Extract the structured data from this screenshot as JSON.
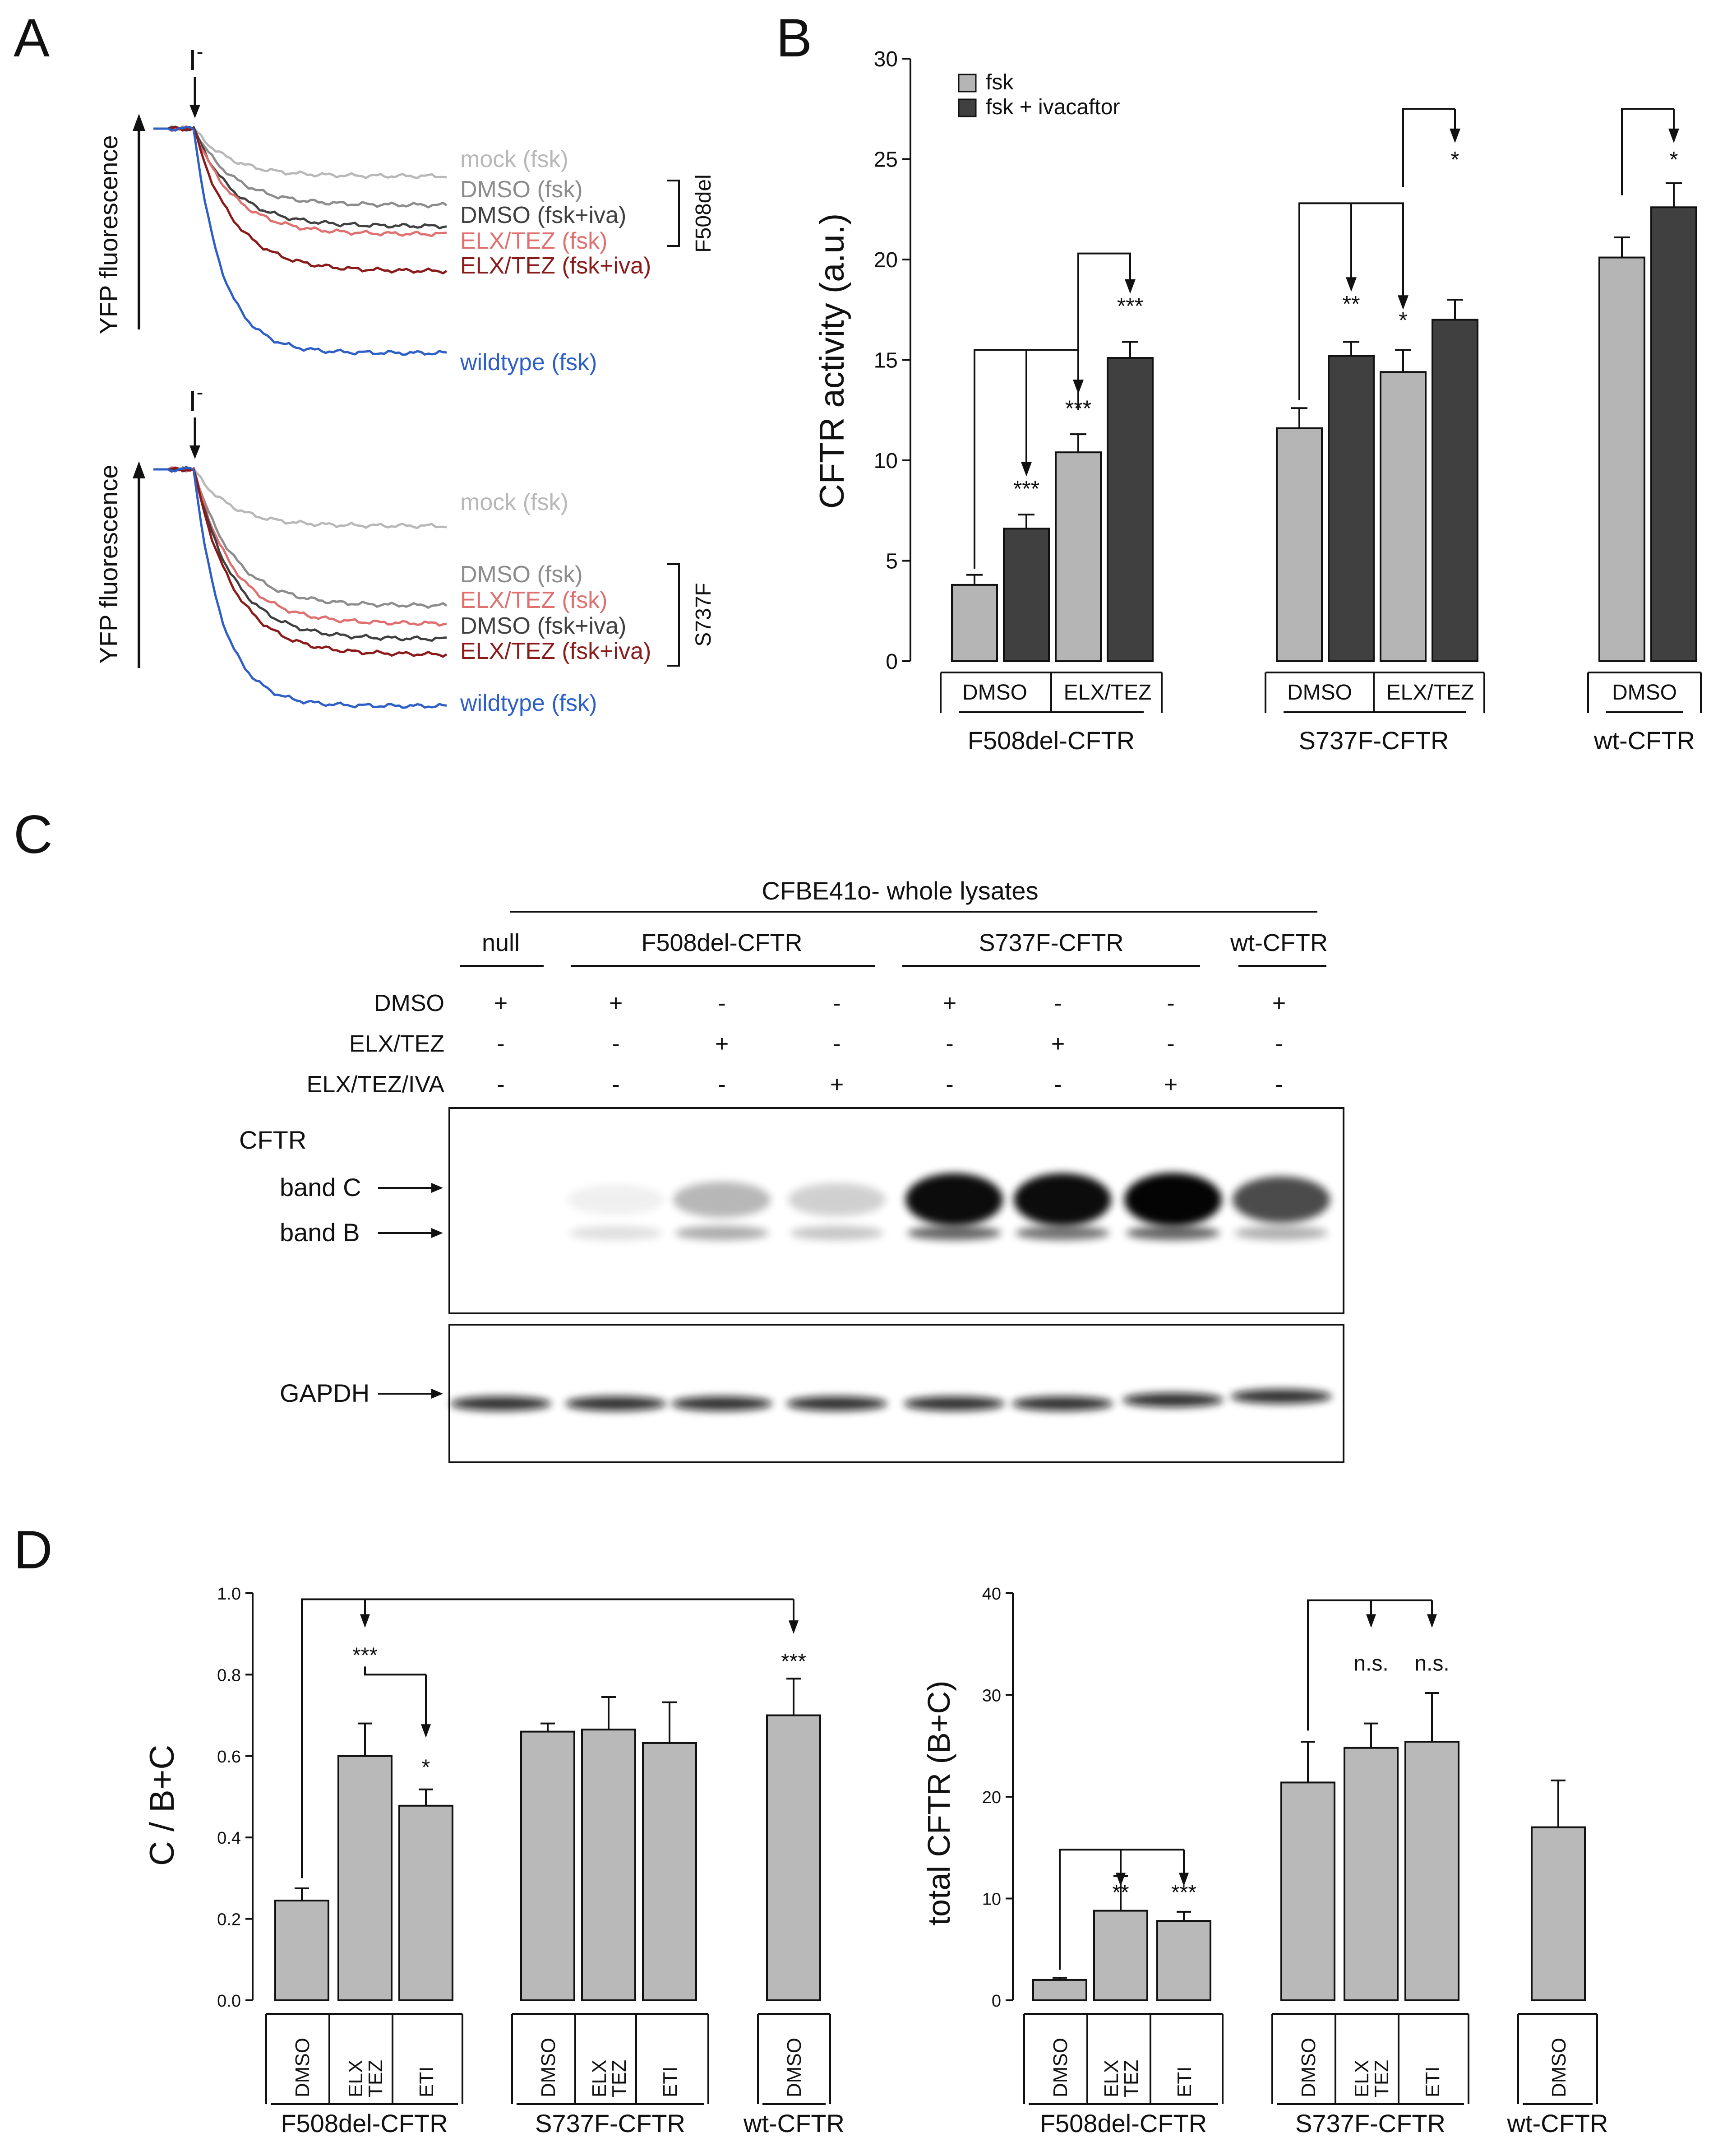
{
  "colors": {
    "fsk_bar": "#b5b5b5",
    "iva_bar": "#404040",
    "mock": "#b8b8b8",
    "dmso_fsk": "#8c8c8c",
    "dmso_iva": "#404040",
    "elx_fsk": "#e07070",
    "elx_iva": "#8b1a1a",
    "wildtype": "#2e5fc7",
    "d_bar": "#b9b9b9",
    "ink": "#111111"
  },
  "panels": {
    "A": {
      "letter": "A",
      "ylabel": "YFP fluorescence",
      "arrow_label": "I",
      "arrow_sup": "-",
      "top": {
        "bracket_label": "F508del",
        "traces": [
          {
            "key": "mock",
            "label": "mock (fsk)",
            "color": "#b8b8b8",
            "final": 0.82
          },
          {
            "key": "dmso_fsk",
            "label": "DMSO (fsk)",
            "color": "#8c8c8c",
            "final": 0.71
          },
          {
            "key": "dmso_iva",
            "label": "DMSO (fsk+iva)",
            "color": "#404040",
            "final": 0.63
          },
          {
            "key": "elx_fsk",
            "label": "ELX/TEZ (fsk)",
            "color": "#e07070",
            "final": 0.6
          },
          {
            "key": "elx_iva",
            "label": "ELX/TEZ (fsk+iva)",
            "color": "#8b1a1a",
            "final": 0.46
          },
          {
            "key": "wildtype",
            "label": "wildtype (fsk)",
            "color": "#2e5fc7",
            "final": 0.15
          }
        ]
      },
      "bottom": {
        "bracket_label": "S737F",
        "traces": [
          {
            "key": "mock",
            "label": "mock (fsk)",
            "color": "#b8b8b8",
            "final": 0.78
          },
          {
            "key": "dmso_fsk",
            "label": "DMSO (fsk)",
            "color": "#8c8c8c",
            "final": 0.47
          },
          {
            "key": "elx_fsk",
            "label": "ELX/TEZ (fsk)",
            "color": "#e07070",
            "final": 0.4
          },
          {
            "key": "dmso_iva",
            "label": "DMSO (fsk+iva)",
            "color": "#404040",
            "final": 0.34
          },
          {
            "key": "elx_iva",
            "label": "ELX/TEZ (fsk+iva)",
            "color": "#8b1a1a",
            "final": 0.28
          },
          {
            "key": "wildtype",
            "label": "wildtype (fsk)",
            "color": "#2e5fc7",
            "final": 0.08
          }
        ]
      }
    },
    "B": {
      "letter": "B",
      "ylabel": "CFTR activity (a.u.)",
      "ylim": [
        0,
        30
      ],
      "yticks": [
        "0",
        "5",
        "10",
        "15",
        "20",
        "25",
        "30"
      ],
      "legend": [
        {
          "label": "fsk",
          "color": "#b5b5b5"
        },
        {
          "label": "fsk + ivacaftor",
          "color": "#404040"
        }
      ],
      "sub_labels": [
        "DMSO",
        "ELX/TEZ",
        "DMSO",
        "ELX/TEZ",
        "DMSO"
      ],
      "group_labels": [
        "F508del-CFTR",
        "S737F-CFTR",
        "wt-CFTR"
      ],
      "stars": [
        "***",
        "***",
        "***",
        "**",
        "*",
        "*",
        "*"
      ]
    },
    "C": {
      "letter": "C",
      "header": "CFBE41o- whole lysates",
      "lane_groups": [
        "null",
        "F508del-CFTR",
        "S737F-CFTR",
        "wt-CFTR"
      ],
      "rows": [
        {
          "label": "DMSO",
          "values": [
            "+",
            "+",
            "-",
            "-",
            "+",
            "-",
            "-",
            "+"
          ]
        },
        {
          "label": "ELX/TEZ",
          "values": [
            "-",
            "-",
            "+",
            "-",
            "-",
            "+",
            "-",
            "-"
          ]
        },
        {
          "label": "ELX/TEZ/IVA",
          "values": [
            "-",
            "-",
            "-",
            "+",
            "-",
            "-",
            "+",
            "-"
          ]
        }
      ],
      "blot_labels": {
        "title": "CFTR",
        "band_c": "band C",
        "band_b": "band B",
        "loading": "GAPDH"
      }
    },
    "D": {
      "letter": "D",
      "left_ylabel": "C / B+C",
      "left_yticks": [
        "0.0",
        "0.2",
        "0.4",
        "0.6",
        "0.8",
        "1.0"
      ],
      "left_stars": [
        "***",
        "*",
        "***"
      ],
      "right_ylabel": "total CFTR (B+C)",
      "right_yticks": [
        "0",
        "10",
        "20",
        "30",
        "40"
      ],
      "right_stars": [
        "**",
        "***",
        "n.s.",
        "n.s."
      ],
      "bar_labels": [
        "DMSO",
        "ELX\nTEZ",
        "ETI",
        "DMSO",
        "ELX\nTEZ",
        "ETI",
        "DMSO"
      ],
      "group_labels": [
        "F508del-CFTR",
        "S737F-CFTR",
        "wt-CFTR"
      ]
    }
  },
  "chart_data": [
    {
      "type": "line",
      "panel": "A-top",
      "ylabel": "YFP fluorescence",
      "series": [
        {
          "name": "mock (fsk)",
          "final_relative": 0.82
        },
        {
          "name": "DMSO (fsk)",
          "final_relative": 0.71
        },
        {
          "name": "DMSO (fsk+iva)",
          "final_relative": 0.63
        },
        {
          "name": "ELX/TEZ (fsk)",
          "final_relative": 0.6
        },
        {
          "name": "ELX/TEZ (fsk+iva)",
          "final_relative": 0.46
        },
        {
          "name": "wildtype (fsk)",
          "final_relative": 0.15
        }
      ]
    },
    {
      "type": "line",
      "panel": "A-bottom",
      "ylabel": "YFP fluorescence",
      "series": [
        {
          "name": "mock (fsk)",
          "final_relative": 0.78
        },
        {
          "name": "DMSO (fsk)",
          "final_relative": 0.47
        },
        {
          "name": "ELX/TEZ (fsk)",
          "final_relative": 0.4
        },
        {
          "name": "DMSO (fsk+iva)",
          "final_relative": 0.34
        },
        {
          "name": "ELX/TEZ (fsk+iva)",
          "final_relative": 0.28
        },
        {
          "name": "wildtype (fsk)",
          "final_relative": 0.08
        }
      ]
    },
    {
      "type": "bar",
      "panel": "B",
      "ylabel": "CFTR activity (a.u.)",
      "ylim": [
        0,
        30
      ],
      "categories": [
        "F508del-CFTR DMSO",
        "F508del-CFTR ELX/TEZ",
        "S737F-CFTR DMSO",
        "S737F-CFTR ELX/TEZ",
        "wt-CFTR DMSO"
      ],
      "series": [
        {
          "name": "fsk",
          "values": [
            3.8,
            10.4,
            11.6,
            14.4,
            20.1
          ],
          "errors": [
            0.5,
            0.9,
            1.0,
            1.1,
            1.0
          ]
        },
        {
          "name": "fsk + ivacaftor",
          "values": [
            6.6,
            15.1,
            15.2,
            17.0,
            22.6
          ],
          "errors": [
            0.7,
            0.8,
            0.7,
            1.0,
            1.2
          ]
        }
      ]
    },
    {
      "type": "bar",
      "panel": "D-left",
      "ylabel": "C / B+C",
      "ylim": [
        0,
        1.0
      ],
      "categories": [
        "F508del DMSO",
        "F508del ELX/TEZ",
        "F508del ETI",
        "S737F DMSO",
        "S737F ELX/TEZ",
        "S737F ETI",
        "wt DMSO"
      ],
      "values": [
        0.245,
        0.6,
        0.478,
        0.66,
        0.665,
        0.632,
        0.7
      ],
      "errors": [
        0.03,
        0.08,
        0.04,
        0.02,
        0.08,
        0.1,
        0.09
      ]
    },
    {
      "type": "bar",
      "panel": "D-right",
      "ylabel": "total CFTR (B+C)",
      "ylim": [
        0,
        40
      ],
      "categories": [
        "F508del DMSO",
        "F508del ELX/TEZ",
        "F508del ETI",
        "S737F DMSO",
        "S737F ELX/TEZ",
        "S737F ETI",
        "wt DMSO"
      ],
      "values": [
        2.0,
        8.8,
        7.8,
        21.4,
        24.8,
        25.4,
        17.0
      ],
      "errors": [
        0.2,
        3.4,
        0.9,
        4.0,
        2.4,
        4.8,
        4.6
      ]
    }
  ]
}
